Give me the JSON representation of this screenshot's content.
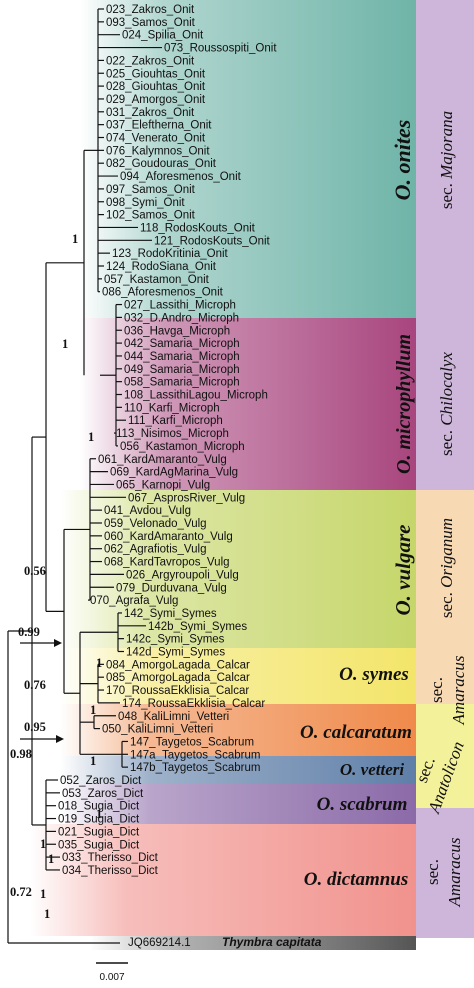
{
  "leaves": [
    "023_Zakros_Onit",
    "093_Samos_Onit",
    "024_Spilia_Onit",
    "073_Roussospiti_Onit",
    "022_Zakros_Onit",
    "025_Giouhtas_Onit",
    "028_Giouhtas_Onit",
    "029_Amorgos_Onit",
    "031_Zakros_Onit",
    "037_Eleftherna_Onit",
    "074_Venerato_Onit",
    "076_Kalymnos_Onit",
    "082_Goudouras_Onit",
    "094_Aforesmenos_Onit",
    "097_Samos_Onit",
    "098_Symi_Onit",
    "102_Samos_Onit",
    "118_RodosKouts_Onit",
    "121_RodosKouts_Onit",
    "123_RodoKritinia_Onit",
    "124_RodoSiana_Onit",
    "057_Kastamon_Onit",
    "086_Aforesmenos_Onit",
    "027_Lassithi_Microph",
    "032_D.Andro_Microph",
    "036_Havga_Microph",
    "042_Samaria_Microph",
    "044_Samaria_Microph",
    "049_Samaria_Microph",
    "058_Samaria_Microph",
    "108_LassithiLagou_Microph",
    "110_Karfi_Microph",
    "111_Karfi_Microph",
    "113_Nisimos_Microph",
    "056_Kastamon_Microph",
    "061_KardAmaranto_Vulg",
    "069_KardAgMarina_Vulg",
    "065_Karnopi_Vulg",
    "067_AsprosRiver_Vulg",
    "041_Avdou_Vulg",
    "059_Velonado_Vulg",
    "060_KardAmaranto_Vulg",
    "062_Agrafiotis_Vulg",
    "068_KardTavropos_Vulg",
    "026_Argyroupoli_Vulg",
    "079_Durduvana_Vulg",
    "070_Agrafa_Vulg",
    "142_Symi_Symes",
    "142b_Symi_Symes",
    "142c_Symi_Symes",
    "142d_Symi_Symes",
    "084_AmorgoLagada_Calcar",
    "085_AmorgoLagada_Calcar",
    "170_RoussaEkklisia_Calcar",
    "174_RoussaEkklisia_Calcar",
    "048_KaliLimni_Vetteri",
    "050_KaliLimni_Vetteri",
    "147_Taygetos_Scabrum",
    "147a_Taygetos_Scabrum",
    "147b_Taygetos_Scabrum",
    "052_Zaros_Dict",
    "053_Zaros_Dict",
    "018_Sugia_Dict",
    "019_Sugia_Dict",
    "021_Sugia_Dict",
    "035_Sugia_Dict",
    "033_Therisso_Dict",
    "034_Therisso_Dict"
  ],
  "outgroup": {
    "accession": "JQ669214.1",
    "species": "Thymbra capitata"
  },
  "clades": [
    {
      "name": "O. onites",
      "color": "#6fb4a8"
    },
    {
      "name": "O. microphyllum",
      "color": "#a8457e"
    },
    {
      "name": "O. vulgare",
      "color": "#c6d66a"
    },
    {
      "name": "O. symes",
      "color": "#f3e56a"
    },
    {
      "name": "O. calcaratum",
      "color": "#ef8a4b"
    },
    {
      "name": "O. vetteri",
      "color": "#5f7fa8"
    },
    {
      "name": "O. scabrum",
      "color": "#8b6aa8"
    },
    {
      "name": "O. dictamnus",
      "color": "#f1928d"
    }
  ],
  "sections": [
    {
      "prefix": "sec.",
      "name": "Majorana",
      "color": "#cdb6da"
    },
    {
      "prefix": "sec.",
      "name": "Chilocalyx",
      "color": "#cdb6da"
    },
    {
      "prefix": "sec.",
      "name": "Origanum",
      "color": "#f7d9b3"
    },
    {
      "prefix": "sec.",
      "name": "Amaracus",
      "color": "#f7d9b3"
    },
    {
      "prefix": "sec.",
      "name": "Anatolicon",
      "color": "#f3f29a"
    },
    {
      "prefix": "sec.",
      "name": "Amaracus",
      "color": "#cdb6da"
    }
  ],
  "supports": [
    "1",
    "1",
    "1",
    "0.56",
    "0.99",
    "1",
    "0.76",
    "1",
    "0.95",
    "1",
    "0.98",
    "1",
    "0.72",
    "1",
    "1",
    "1",
    "1"
  ],
  "scale_bar": "0.007"
}
